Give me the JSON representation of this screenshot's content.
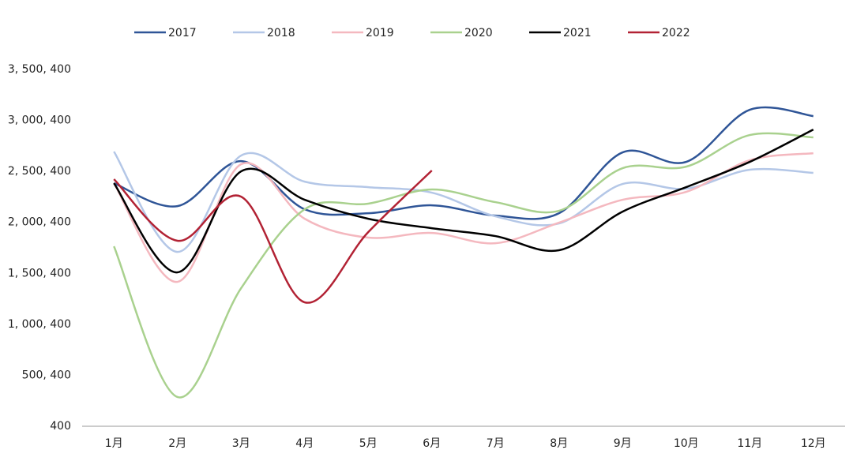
{
  "chart_data": {
    "type": "line",
    "categories": [
      "1月",
      "2月",
      "3月",
      "4月",
      "5月",
      "6月",
      "7月",
      "8月",
      "9月",
      "10月",
      "11月",
      "12月"
    ],
    "series": [
      {
        "name": "2017",
        "color": "#2f5597",
        "values": [
          2385000,
          2160000,
          2601000,
          2129000,
          2090000,
          2168000,
          2067000,
          2090000,
          2687000,
          2594000,
          3105000,
          3043000
        ]
      },
      {
        "name": "2018",
        "color": "#b4c7e7",
        "values": [
          2695000,
          1711000,
          2656000,
          2400000,
          2346000,
          2292000,
          2060000,
          1990000,
          2377000,
          2331000,
          2517000,
          2486000
        ]
      },
      {
        "name": "2019",
        "color": "#f4b8bf",
        "values": [
          2385000,
          1417000,
          2571000,
          2036000,
          1851000,
          1897000,
          1796000,
          1998000,
          2222000,
          2300000,
          2610000,
          2679000
        ]
      },
      {
        "name": "2020",
        "color": "#a9d18e",
        "values": [
          1766000,
          287000,
          1355000,
          2129000,
          2184000,
          2323000,
          2199000,
          2114000,
          2532000,
          2547000,
          2857000,
          2834000
        ]
      },
      {
        "name": "2021",
        "color": "#000000",
        "values": [
          2385000,
          1510000,
          2501000,
          2222000,
          2036000,
          1943000,
          1866000,
          1727000,
          2106000,
          2346000,
          2594000,
          2911000
        ]
      },
      {
        "name": "2022",
        "color": "#b22234",
        "values": [
          2424000,
          1820000,
          2253000,
          1216000,
          1905000,
          2509000,
          null,
          null,
          null,
          null,
          null,
          null
        ]
      }
    ],
    "ylim": [
      400,
      3500400
    ],
    "yticks": [
      400,
      {
        "value": 500400,
        "label": "500, 400"
      },
      {
        "value": 1000400,
        "label": "1, 000, 400"
      },
      {
        "value": 1500400,
        "label": "1, 500, 400"
      },
      {
        "value": 2000400,
        "label": "2, 000, 400"
      },
      {
        "value": 2500400,
        "label": "2, 500, 400"
      },
      {
        "value": 3000400,
        "label": "3, 000, 400"
      },
      {
        "value": 3500400,
        "label": "3, 500, 400"
      }
    ],
    "legend": "top"
  }
}
